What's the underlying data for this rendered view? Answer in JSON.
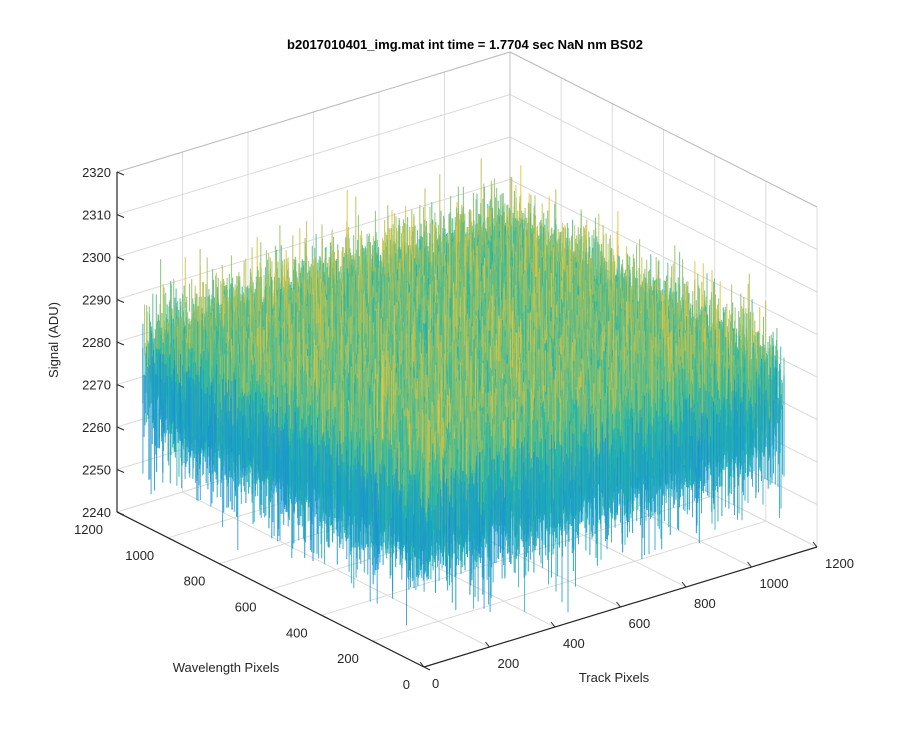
{
  "chart_data": {
    "type": "surface",
    "title": "b2017010401_img.mat int time = 1.7704 sec  NaN nm BS02",
    "xlabel": "Track Pixels",
    "ylabel": "Wavelength Pixels",
    "zlabel": "Signal (ADU)",
    "xlim": [
      0,
      1200
    ],
    "ylim": [
      0,
      1200
    ],
    "zlim": [
      2240,
      2320
    ],
    "x_ticks": [
      "0",
      "200",
      "400",
      "600",
      "800",
      "1000",
      "1200"
    ],
    "y_ticks": [
      "0",
      "200",
      "400",
      "600",
      "800",
      "1000",
      "1200"
    ],
    "z_ticks": [
      "2240",
      "2250",
      "2260",
      "2270",
      "2280",
      "2290",
      "2300",
      "2310",
      "2320"
    ],
    "surface": {
      "x_range": [
        1,
        1100
      ],
      "y_range": [
        1,
        1100
      ],
      "mean_signal": 2280,
      "noise_min": 2245,
      "noise_max": 2318,
      "colormap": "parula"
    },
    "colors": {
      "low": "#1a8fd6",
      "mid": "#1fb8a8",
      "high": "#e8c53a",
      "axis": "#262626",
      "grid": "#dcdcdc"
    },
    "grid": true
  }
}
